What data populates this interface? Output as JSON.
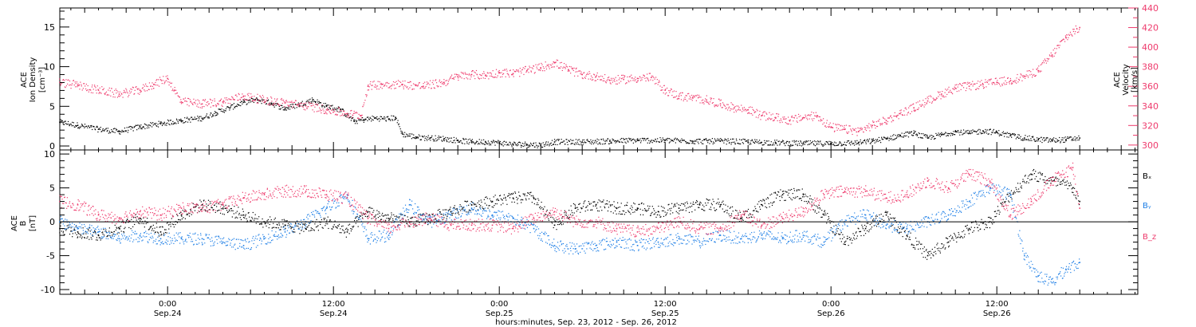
{
  "colors": {
    "axis": "#000000",
    "pink": "#ee3a6c",
    "blue": "#1e7fe6",
    "black": "#000000"
  },
  "x_axis": {
    "label": "hours:minutes, Sep. 23, 2012 - Sep. 26, 2012",
    "ticks": [
      {
        "hour": 0,
        "time": "0:00",
        "date": "Sep.24"
      },
      {
        "hour": 12,
        "time": "12:00",
        "date": "Sep.24"
      },
      {
        "hour": 24,
        "time": "0:00",
        "date": "Sep.25"
      },
      {
        "hour": 36,
        "time": "12:00",
        "date": "Sep.25"
      },
      {
        "hour": 48,
        "time": "0:00",
        "date": "Sep.26"
      },
      {
        "hour": 60,
        "time": "12:00",
        "date": "Sep.26"
      }
    ]
  },
  "chart_data": [
    {
      "type": "scatter",
      "panel": "top",
      "ylabel_left": [
        "ACE",
        "Ion Density",
        "[cm⁻³]"
      ],
      "ylabel_right": [
        "ACE",
        "Velocity",
        "[km/s]"
      ],
      "xlim": [
        -7.8,
        70.2
      ],
      "ylim_left": [
        -0.5,
        17.4
      ],
      "ylim_right": [
        295,
        440
      ],
      "yticks_left": [
        0,
        5,
        10,
        15
      ],
      "yticks_right": [
        300,
        320,
        340,
        360,
        380,
        400,
        420,
        440
      ],
      "series": [
        {
          "axis": "left",
          "color": "black",
          "x": [
            -7.8,
            -6.5,
            -5,
            -3.5,
            -2,
            -0.5,
            1,
            2.5,
            3.5,
            4.5,
            5.5,
            6.5,
            7.5,
            8.5,
            9.5,
            10.5,
            11.5,
            12.5,
            13.5,
            14.2,
            15,
            16,
            16.5,
            17,
            18,
            19,
            20,
            21,
            22,
            23,
            24,
            25,
            26,
            27,
            28,
            30,
            32,
            34,
            36,
            38,
            40,
            42,
            44,
            46,
            48,
            50,
            51,
            52,
            53,
            54,
            55,
            56,
            57,
            58,
            59,
            60,
            61,
            62,
            63,
            64,
            65,
            66
          ],
          "y": [
            3.0,
            2.6,
            2.1,
            1.8,
            2.4,
            2.8,
            3.2,
            3.5,
            4.2,
            4.8,
            5.5,
            5.8,
            5.4,
            4.7,
            5.2,
            5.8,
            5.0,
            4.6,
            3.1,
            3.3,
            3.5,
            3.4,
            3.6,
            1.5,
            1.1,
            1.0,
            0.9,
            0.7,
            0.5,
            0.5,
            0.4,
            0.2,
            0.2,
            0.1,
            0.5,
            0.5,
            0.6,
            0.7,
            0.7,
            0.6,
            0.6,
            0.5,
            0.4,
            0.3,
            0.3,
            0.4,
            0.6,
            0.9,
            1.3,
            1.6,
            1.0,
            1.4,
            1.8,
            1.6,
            1.9,
            1.7,
            1.3,
            1.0,
            0.8,
            0.7,
            0.8,
            1.0
          ]
        },
        {
          "axis": "right",
          "color": "pink",
          "x": [
            -7.8,
            -6.5,
            -5,
            -3.5,
            -2,
            -1,
            0,
            0.5,
            1,
            2.5,
            4,
            5.5,
            7,
            8.5,
            10,
            11.5,
            13,
            14,
            14.5,
            15.5,
            17,
            18.5,
            20,
            21,
            22,
            23,
            24,
            25,
            26,
            27,
            28,
            29,
            30,
            31,
            32,
            33,
            34,
            35,
            36,
            37,
            38,
            39,
            40,
            41,
            42,
            43,
            44,
            45,
            46,
            47,
            48,
            49,
            50,
            51,
            52,
            53,
            54,
            55,
            56,
            57,
            58,
            59,
            60,
            61,
            62,
            63,
            64,
            65,
            66
          ],
          "y": [
            364,
            361,
            356,
            352,
            356,
            362,
            368,
            356,
            344,
            342,
            344,
            350,
            346,
            343,
            340,
            336,
            332,
            330,
            360,
            362,
            362,
            360,
            364,
            370,
            372,
            371,
            374,
            373,
            376,
            379,
            384,
            377,
            372,
            370,
            366,
            367,
            368,
            369,
            356,
            350,
            348,
            346,
            342,
            338,
            336,
            330,
            328,
            325,
            328,
            330,
            318,
            316,
            314,
            320,
            325,
            332,
            338,
            345,
            352,
            358,
            360,
            362,
            364,
            366,
            370,
            376,
            392,
            410,
            420
          ]
        }
      ]
    },
    {
      "type": "scatter",
      "panel": "bottom",
      "ylabel": [
        "ACE",
        "B",
        "[nT]"
      ],
      "xlim": [
        -7.8,
        70.2
      ],
      "ylim": [
        -10.7,
        10.6
      ],
      "yticks": [
        -10,
        -5,
        0,
        5,
        10
      ],
      "legend": [
        "Bₓ",
        "Bᵧ",
        "B_z"
      ],
      "series": [
        {
          "name": "Bₓ",
          "color": "black",
          "x": [
            -7.8,
            -6.5,
            -5,
            -3.5,
            -2,
            -0.5,
            1,
            2.5,
            4,
            5.5,
            7,
            8.5,
            10,
            11.5,
            13,
            14.5,
            16,
            17.5,
            19,
            20.5,
            22,
            23.5,
            25,
            26.5,
            28,
            29.5,
            31,
            32.5,
            34,
            35.5,
            37,
            38.5,
            40,
            41.5,
            43,
            44.5,
            46,
            47.5,
            49,
            50.5,
            52,
            53.5,
            55,
            56.5,
            58,
            59.5,
            61,
            62.5,
            64,
            65.5,
            66
          ],
          "y": [
            -1,
            -1.5,
            -2,
            -1,
            0.5,
            -1.5,
            1,
            2.5,
            2,
            1,
            0,
            -0.5,
            -1,
            0,
            -1.5,
            1.5,
            0.5,
            0,
            0.5,
            1.5,
            2.5,
            3,
            3.5,
            3.5,
            -0.5,
            2,
            2.5,
            2,
            2,
            1.5,
            2,
            2.5,
            2.5,
            0.5,
            2.5,
            4,
            4,
            1,
            -3,
            -1,
            1,
            -2,
            -5,
            -3,
            -1,
            0,
            4,
            7,
            6,
            5,
            3
          ]
        },
        {
          "name": "Bᵧ",
          "color": "blue",
          "x": [
            -7.8,
            -6.5,
            -5,
            -3.5,
            -2,
            -0.5,
            1,
            2.5,
            4,
            5.5,
            7,
            8.5,
            10,
            11.5,
            13,
            14.5,
            16,
            17.5,
            19,
            20.5,
            22,
            23.5,
            25,
            26.5,
            28,
            29.5,
            31,
            32.5,
            34,
            35.5,
            37,
            38.5,
            40,
            41.5,
            43,
            44.5,
            46,
            47.5,
            49,
            50.5,
            52,
            53.5,
            55,
            56.5,
            58,
            59.5,
            61,
            62,
            63,
            64,
            65,
            66
          ],
          "y": [
            0,
            -1,
            -1.5,
            -2.5,
            -2,
            -2.5,
            -2.5,
            -2.5,
            -3,
            -3.5,
            -2.5,
            -1.5,
            0,
            2,
            4,
            -2.5,
            -2,
            2.5,
            0,
            1,
            2,
            1,
            0.5,
            -1,
            -3.5,
            -4,
            -3.5,
            -3,
            -3.5,
            -3,
            -2.5,
            -3,
            -2,
            -2.5,
            -2,
            -2.5,
            -2,
            -3,
            0,
            1,
            -0.5,
            -1,
            0,
            1,
            3,
            5,
            4,
            -5,
            -8,
            -9,
            -7,
            -6
          ]
        },
        {
          "name": "B_z",
          "color": "pink",
          "x": [
            -7.8,
            -6.5,
            -5,
            -3.5,
            -2,
            -0.5,
            1,
            2.5,
            4,
            5.5,
            7,
            8.5,
            10,
            11.5,
            13,
            14.5,
            16,
            17.5,
            19,
            20.5,
            22,
            23.5,
            25,
            26.5,
            28,
            29.5,
            31,
            32.5,
            34,
            35.5,
            37,
            38.5,
            40,
            41.5,
            43,
            44.5,
            46,
            47.5,
            49,
            50.5,
            52,
            53.5,
            55,
            56.5,
            58,
            59.5,
            61,
            62.5,
            64,
            65.5,
            66
          ],
          "y": [
            3,
            2.5,
            1,
            0.5,
            1.5,
            1,
            2,
            2,
            2.5,
            3.5,
            4,
            4.5,
            4.5,
            4,
            3.5,
            0.5,
            -1,
            0,
            0.5,
            -0.5,
            -0.5,
            -0.5,
            -1,
            0.5,
            1.5,
            0,
            0,
            -1,
            -1.5,
            -1,
            0,
            -1,
            -1,
            1,
            -0.5,
            0.5,
            1.5,
            4,
            4.5,
            4.5,
            3.5,
            4,
            6,
            5,
            7,
            6,
            1,
            3,
            6,
            8,
            2
          ]
        }
      ]
    }
  ]
}
